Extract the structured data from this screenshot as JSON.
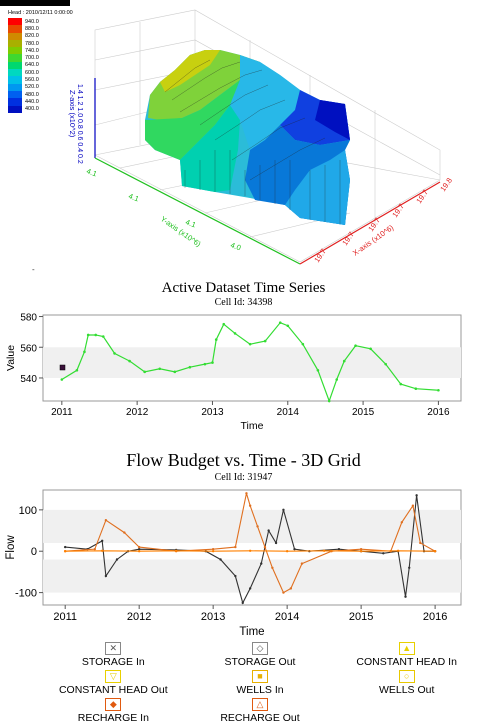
{
  "view3d": {
    "legend_title": "Head : 2010/12/11 0:00:00",
    "legend_values": [
      "940.0",
      "880.0",
      "820.0",
      "780.0",
      "740.0",
      "700.0",
      "640.0",
      "600.0",
      "560.0",
      "520.0",
      "480.0",
      "440.0",
      "400.0"
    ],
    "legend_colors": [
      "#ff0000",
      "#e84a00",
      "#d08a00",
      "#a8b000",
      "#7fcc00",
      "#3fd830",
      "#00d870",
      "#00d8c0",
      "#00c0e8",
      "#0098f0",
      "#0060f0",
      "#0030e0",
      "#0010c0"
    ],
    "z_axis_label": "Z-axis (x10^2)",
    "z_ticks": "1.4 1.2 1.0 0.8 0.6 0.4 0.2",
    "y_axis_label": "Y-axis (x10^6)",
    "y_ticks": [
      "4.1",
      "4.1",
      "4.1",
      "4.0"
    ],
    "x_axis_label": "X-axis (x10^6)",
    "x_ticks": [
      "19.7",
      "19.7",
      "19.7",
      "19.7",
      "19.7",
      "19.8"
    ],
    "axis_colors": {
      "z": "#0000c0",
      "y": "#20c020",
      "x": "#e02020"
    }
  },
  "chart1": {
    "title": "Active Dataset Time Series",
    "subtitle": "Cell Id: 34398",
    "xlabel": "Time",
    "ylabel": "Value",
    "series_color": "#33dd33"
  },
  "chart2": {
    "title": "Flow Budget vs. Time - 3D Grid",
    "subtitle": "Cell Id: 31947",
    "xlabel": "Time",
    "ylabel": "Flow"
  },
  "legend": [
    {
      "label": "STORAGE In",
      "symbol": "✕",
      "color": "#555555"
    },
    {
      "label": "STORAGE Out",
      "symbol": "◇",
      "color": "#555555"
    },
    {
      "label": "CONSTANT HEAD In",
      "symbol": "▲",
      "color": "#e8d000"
    },
    {
      "label": "CONSTANT HEAD Out",
      "symbol": "▽",
      "color": "#e8d000"
    },
    {
      "label": "WELLS In",
      "symbol": "■",
      "color": "#e8b000"
    },
    {
      "label": "WELLS Out",
      "symbol": "○",
      "color": "#e8c800"
    },
    {
      "label": "RECHARGE In",
      "symbol": "◆",
      "color": "#e05a10"
    },
    {
      "label": "RECHARGE Out",
      "symbol": "△",
      "color": "#e05a10"
    }
  ],
  "chart_data": [
    {
      "type": "line",
      "title": "Active Dataset Time Series",
      "subtitle": "Cell Id: 34398",
      "xlabel": "Time",
      "ylabel": "Value",
      "xlim": [
        2010.75,
        2016.3
      ],
      "ylim": [
        525,
        581
      ],
      "xticks": [
        2011,
        2012,
        2013,
        2014,
        2015,
        2016
      ],
      "yticks": [
        540,
        560,
        580
      ],
      "series": [
        {
          "color": "#33dd33",
          "x": [
            2011.0,
            2011.2,
            2011.3,
            2011.35,
            2011.45,
            2011.55,
            2011.7,
            2011.9,
            2012.1,
            2012.3,
            2012.5,
            2012.7,
            2012.9,
            2013.0,
            2013.05,
            2013.15,
            2013.3,
            2013.5,
            2013.7,
            2013.9,
            2014.0,
            2014.2,
            2014.4,
            2014.55,
            2014.65,
            2014.75,
            2014.9,
            2015.1,
            2015.3,
            2015.5,
            2015.7,
            2016.0
          ],
          "y": [
            539,
            545,
            557,
            568,
            568,
            567,
            556,
            551,
            544,
            546,
            544,
            547,
            549,
            550,
            565,
            575,
            569,
            562,
            564,
            576,
            574,
            562,
            545,
            525,
            539,
            551,
            561,
            559,
            549,
            536,
            533,
            532
          ]
        }
      ]
    },
    {
      "type": "line",
      "title": "Flow Budget vs. Time - 3D Grid",
      "subtitle": "Cell Id: 31947",
      "xlabel": "Time",
      "ylabel": "Flow",
      "xlim": [
        2010.7,
        2016.35
      ],
      "ylim": [
        -130,
        148
      ],
      "xticks": [
        2011,
        2012,
        2013,
        2014,
        2015,
        2016
      ],
      "yticks": [
        -100,
        0,
        100
      ],
      "series": [
        {
          "name": "STORAGE In",
          "color": "#333333",
          "x": [
            2011.0,
            2011.3,
            2011.5,
            2011.55,
            2011.7,
            2011.85,
            2012.0,
            2012.5,
            2012.9,
            2013.1,
            2013.3,
            2013.4,
            2013.5,
            2013.65,
            2013.75,
            2013.85,
            2013.95,
            2014.1,
            2014.3,
            2014.7,
            2015.0,
            2015.3,
            2015.5,
            2015.6,
            2015.65,
            2015.75,
            2015.85,
            2016.0
          ],
          "y": [
            10,
            5,
            25,
            -60,
            -20,
            0,
            5,
            3,
            0,
            -20,
            -60,
            -125,
            -90,
            -30,
            50,
            20,
            100,
            5,
            0,
            5,
            0,
            -5,
            0,
            -110,
            -40,
            135,
            0,
            0
          ]
        },
        {
          "name": "RECHARGE Out",
          "color": "#e07020",
          "x": [
            2011.0,
            2011.4,
            2011.55,
            2011.8,
            2012.0,
            2012.5,
            2013.0,
            2013.3,
            2013.45,
            2013.5,
            2013.6,
            2013.7,
            2013.8,
            2013.95,
            2014.05,
            2014.2,
            2014.6,
            2015.0,
            2015.4,
            2015.55,
            2015.7,
            2015.8,
            2016.0
          ],
          "y": [
            0,
            5,
            75,
            45,
            10,
            0,
            5,
            10,
            140,
            110,
            60,
            10,
            -40,
            -100,
            -90,
            -30,
            0,
            5,
            0,
            70,
            110,
            20,
            0
          ]
        },
        {
          "name": "RECHARGE In",
          "color": "#ff8000",
          "x": [
            2011.0,
            2011.5,
            2012.0,
            2012.5,
            2013.0,
            2013.5,
            2014.0,
            2014.5,
            2015.0,
            2015.5,
            2016.0
          ],
          "y": [
            0,
            1,
            0,
            1,
            0,
            1,
            0,
            1,
            0,
            1,
            0
          ]
        }
      ]
    }
  ]
}
